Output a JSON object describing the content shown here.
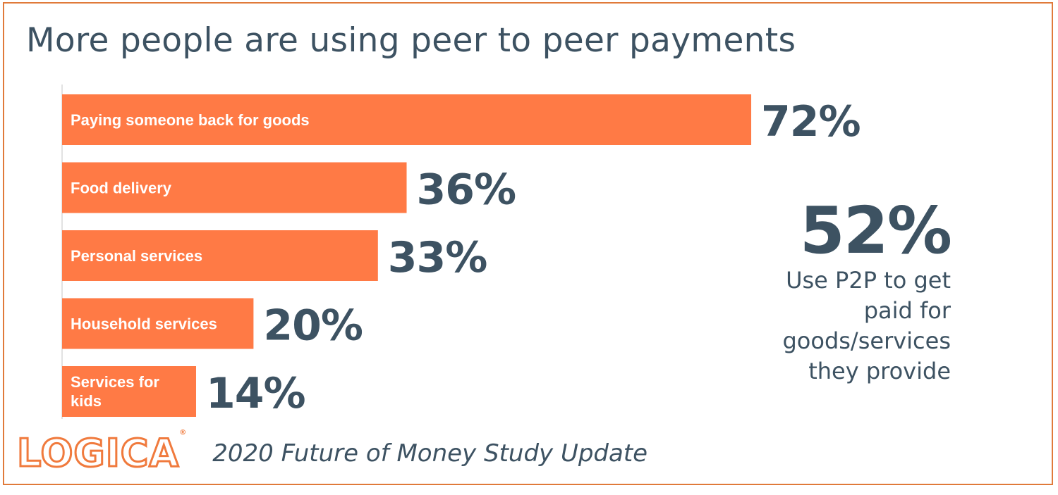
{
  "title": "More people are using peer to peer payments",
  "chart_data": {
    "type": "bar",
    "orientation": "horizontal",
    "categories": [
      "Paying someone back for goods",
      "Food delivery",
      "Personal services",
      "Household services",
      "Services for kids"
    ],
    "values": [
      72,
      36,
      33,
      20,
      14
    ],
    "value_labels": [
      "72%",
      "36%",
      "33%",
      "20%",
      "14%"
    ],
    "unit": "%",
    "xlim": [
      0,
      100
    ],
    "grid": false,
    "legend": "none",
    "bar_color": "#ff7a45",
    "label_color": "#3d5262"
  },
  "callout": {
    "value": "52%",
    "text": "Use P2P to get paid for goods/services they provide"
  },
  "footer": {
    "logo": "LOGICA",
    "logo_mark": "®",
    "study": "2020 Future of Money Study Update"
  }
}
